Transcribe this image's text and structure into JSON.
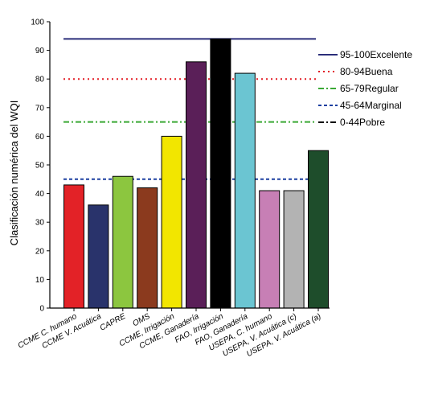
{
  "chart_data": {
    "type": "bar",
    "ylabel": "Clasificación numérica del WQI",
    "ylim": [
      0,
      100
    ],
    "yticks": [
      0,
      10,
      20,
      30,
      40,
      50,
      60,
      70,
      80,
      90,
      100
    ],
    "categories": [
      "CCME C. humano",
      "CCME V. Acuática",
      "CAPRE",
      "OMS",
      "CCME, Irrigación",
      "CCME, Ganadería",
      "FAO, Irrigación",
      "FAO, Ganadería",
      "USEPA, C. humano",
      "USEPA, V. Acuática (c)",
      "USEPA, V. Acuática (a)"
    ],
    "values": [
      43,
      36,
      46,
      42,
      60,
      86,
      94,
      82,
      41,
      41,
      55
    ],
    "bar_colors": [
      "#e32227",
      "#29336b",
      "#8cc63f",
      "#8b3a1e",
      "#f2e600",
      "#5a1f58",
      "#000000",
      "#6bc5d2",
      "#c77fb5",
      "#b3b3b3",
      "#1e4d2b"
    ],
    "reference_lines": [
      {
        "label": "95-100Excelente",
        "value": 94,
        "color": "#2b2e7a",
        "style": "solid"
      },
      {
        "label": "80-94Buena",
        "value": 80,
        "color": "#e31b23",
        "style": "dotted"
      },
      {
        "label": "65-79Regular",
        "value": 65,
        "color": "#3aa935",
        "style": "dashdot"
      },
      {
        "label": "45-64Marginal",
        "value": 45,
        "color": "#1b3fa0",
        "style": "dashed"
      },
      {
        "label": "0-44Pobre",
        "value": null,
        "color": "#000000",
        "style": "dashdot"
      }
    ],
    "legend_position": "right",
    "grid": false
  }
}
